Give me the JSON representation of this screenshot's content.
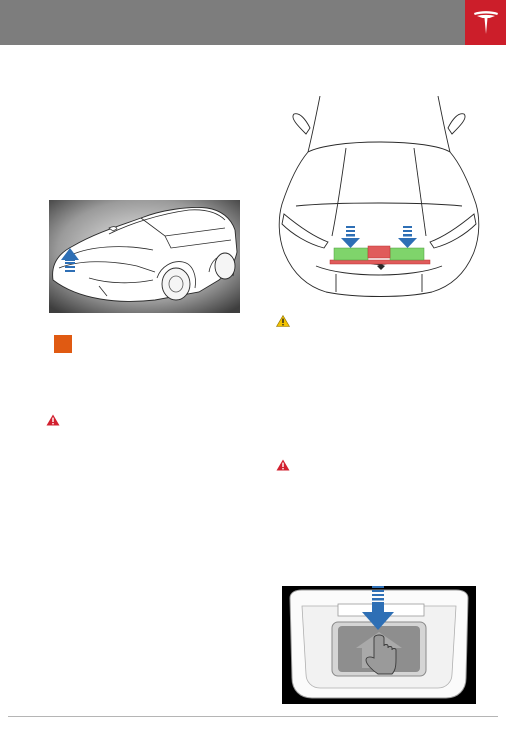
{
  "page": {
    "header_color": "#7d7d7d",
    "brand_color": "#cc1e2a",
    "brand_logo": "tesla-logo"
  },
  "icons": {
    "caution_1": "caution-triangle-icon",
    "warning_1": "warning-triangle-icon",
    "warning_2": "warning-triangle-icon",
    "marker": "orange-square-marker"
  },
  "colors": {
    "caution": "#f2c200",
    "warning": "#d2202f",
    "marker": "#e05a12",
    "arrow_blue": "#2e6fb5",
    "press_zone_green": "#7fd46b",
    "press_zone_red": "#e05b5b"
  }
}
